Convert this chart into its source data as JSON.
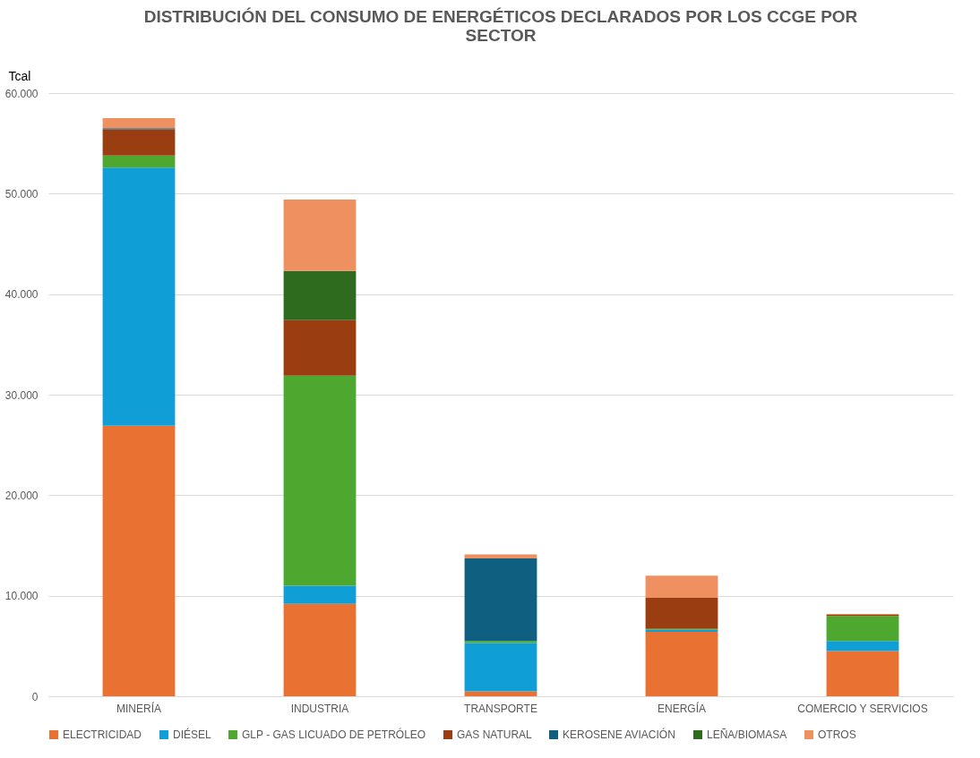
{
  "chart_data": {
    "type": "bar",
    "stacked": true,
    "title": "DISTRIBUCIÓN DEL CONSUMO DE ENERGÉTICOS DECLARADOS POR LOS CCGE POR SECTOR",
    "ylabel": "Tcal",
    "categories": [
      "MINERÍA",
      "INDUSTRIA",
      "TRANSPORTE",
      "ENERGÍA",
      "COMERCIO Y SERVICIOS"
    ],
    "series": [
      {
        "name": "ELECTRICIDAD",
        "color": "#e97132",
        "values": [
          26900,
          9200,
          500,
          6400,
          4500
        ]
      },
      {
        "name": "DIÉSEL",
        "color": "#0f9ed5",
        "values": [
          25700,
          1800,
          4800,
          200,
          1000
        ]
      },
      {
        "name": "GLP - GAS LICUADO DE PETRÓLEO",
        "color": "#4ea72e",
        "values": [
          1200,
          20900,
          200,
          100,
          2500
        ]
      },
      {
        "name": "GAS NATURAL",
        "color": "#9a3e12",
        "values": [
          2600,
          5500,
          0,
          3100,
          100
        ]
      },
      {
        "name": "KEROSENE AVIACIÓN",
        "color": "#0e5f80",
        "values": [
          100,
          0,
          8200,
          0,
          0
        ]
      },
      {
        "name": "LEÑA/BIOMASA",
        "color": "#2e6b1f",
        "values": [
          0,
          4900,
          0,
          0,
          0
        ]
      },
      {
        "name": "OTROS",
        "color": "#ee9060",
        "values": [
          1000,
          7100,
          400,
          2200,
          100
        ]
      }
    ],
    "ylim": [
      0,
      60000
    ],
    "yticks": [
      0,
      {
        "value": 10000,
        "label": "10.000"
      },
      {
        "value": 20000,
        "label": "20.000"
      },
      {
        "value": 30000,
        "label": "30.000"
      },
      {
        "value": 40000,
        "label": "40.000"
      },
      {
        "value": 50000,
        "label": "50.000"
      },
      {
        "value": 60000,
        "label": "60.000"
      }
    ],
    "grid": "y",
    "legend": "bottom"
  }
}
